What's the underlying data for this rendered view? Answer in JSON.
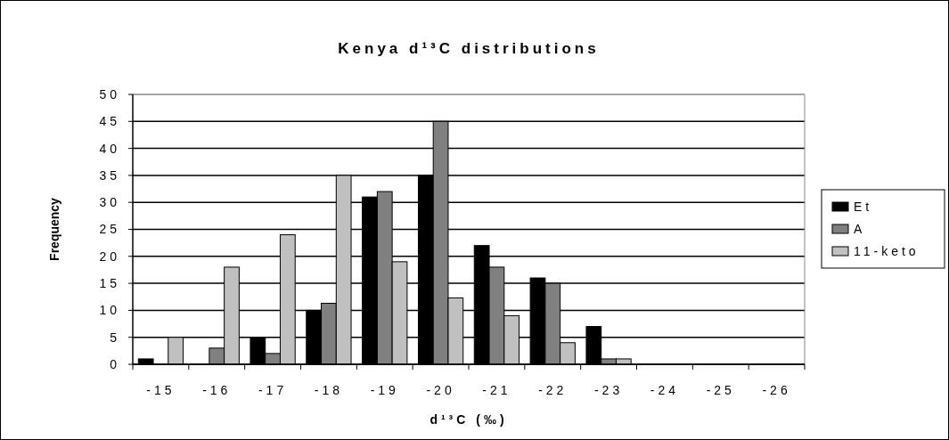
{
  "chart_data": {
    "type": "bar",
    "title": "Kenya d¹³C distributions",
    "xlabel": "d¹³C (‰)",
    "ylabel": "Frequency",
    "categories": [
      "-15",
      "-16",
      "-17",
      "-18",
      "-19",
      "-20",
      "-21",
      "-22",
      "-23",
      "-24",
      "-25",
      "-26"
    ],
    "series": [
      {
        "name": "Et",
        "color": "#000000",
        "values": [
          1,
          0,
          5,
          10,
          31,
          35,
          22,
          16,
          7,
          0,
          0,
          0
        ]
      },
      {
        "name": "A",
        "color": "#808080",
        "values": [
          0,
          3,
          2,
          11.3,
          32,
          45,
          18,
          15,
          1,
          0,
          0,
          0
        ]
      },
      {
        "name": "11-keto",
        "color": "#c0c0c0",
        "values": [
          5,
          18,
          24,
          35,
          19,
          12.3,
          9,
          4,
          1,
          0,
          0,
          0
        ]
      }
    ],
    "ylim": [
      0,
      50
    ],
    "yticks": [
      0,
      5,
      10,
      15,
      20,
      25,
      30,
      35,
      40,
      45,
      50
    ],
    "grid": "y",
    "legend": "right"
  }
}
